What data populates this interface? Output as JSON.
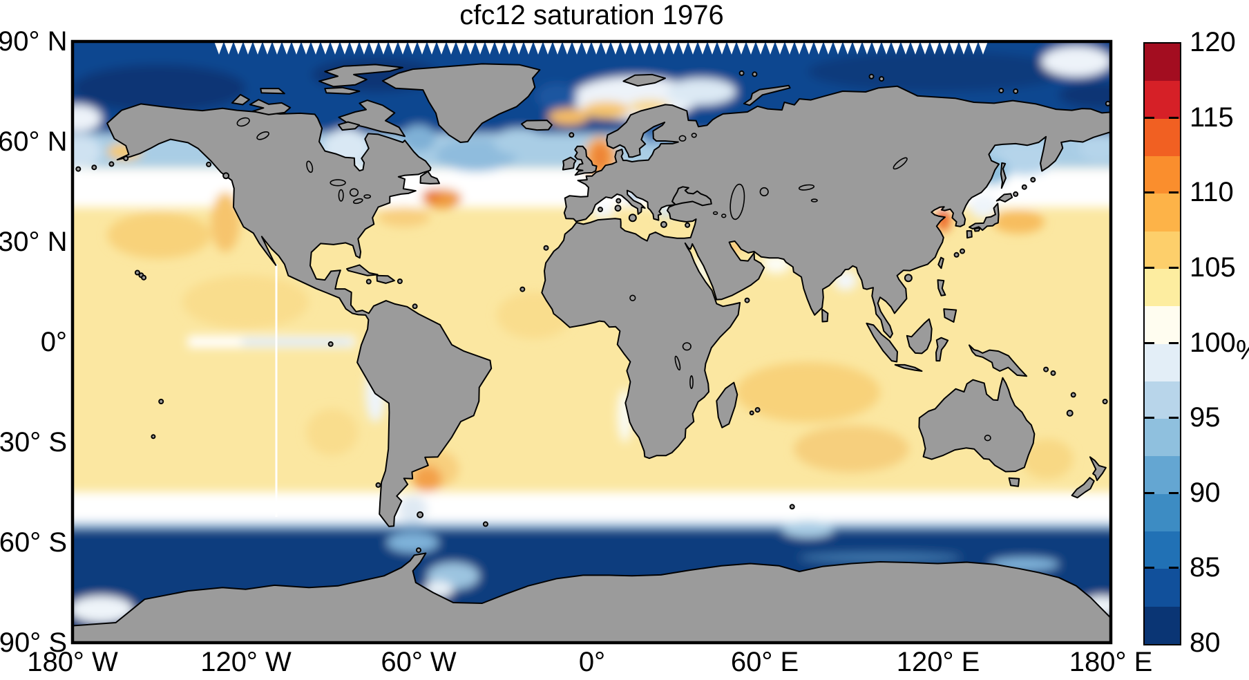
{
  "title": "cfc12 saturation 1976",
  "axes": {
    "x_tick_labels": [
      "180° W",
      "120° W",
      "60° W",
      "0°",
      "60° E",
      "120° E",
      "180° E"
    ],
    "x_tick_lons": [
      -180,
      -120,
      -60,
      0,
      60,
      120,
      180
    ],
    "y_tick_labels": [
      "90° N",
      "60° N",
      "30° N",
      "0°",
      "30° S",
      "60° S",
      "90° S"
    ],
    "y_tick_lats": [
      90,
      60,
      30,
      0,
      -30,
      -60,
      -90
    ]
  },
  "colorbar": {
    "min": 80,
    "max": 120,
    "tick_label_values": [
      120,
      115,
      110,
      105,
      100,
      95,
      90,
      85,
      80
    ],
    "inner_tick_values": [
      115,
      110,
      105,
      100,
      95,
      90,
      85
    ],
    "unit_label": "%",
    "segment_colors_bottom_to_top": [
      "#0a3574",
      "#11509b",
      "#2171b5",
      "#3d8cc3",
      "#64a6d2",
      "#8fc0de",
      "#b8d5ea",
      "#e3eef7",
      "#fffdf0",
      "#fdeda0",
      "#fdcf6b",
      "#fdb348",
      "#fa8e2d",
      "#f16022",
      "#d62027",
      "#a30d20"
    ]
  },
  "map": {
    "land_color": "#9b9b9b",
    "coast_color": "#000000",
    "frame_color": "#000000",
    "background_color": "#ffffff"
  },
  "chart_data": {
    "type": "heatmap",
    "title": "cfc12 saturation 1976",
    "variable": "CFC-12 surface saturation",
    "year": 1976,
    "units": "%",
    "projection": "equirectangular world map",
    "lon_range": [
      -180,
      180
    ],
    "lat_range": [
      -90,
      90
    ],
    "colorbar_range": [
      80,
      120
    ],
    "colorbar_tick_step": 5,
    "legend_position": "right colorbar",
    "grid": false,
    "regional_values_estimated_percent": {
      "arctic_ocean": 82,
      "barents_norwegian_sea_patch": 105,
      "north_atlantic_subpolar": 93,
      "hudson_bay": 97,
      "north_sea_baltic_approach": 110,
      "baltic_gulfs": 84,
      "newfoundland_gulf_stream_patch": 109,
      "subtropical_north_atlantic": 103,
      "mediterranean": 102,
      "black_sea": 96,
      "north_pacific_subpolar": 96,
      "bering_sea": 94,
      "sea_of_okhotsk": 93,
      "yellow_sea_hotspot": 113,
      "kuroshio_patch": 106,
      "subtropical_north_pacific": 104,
      "equatorial_pacific_tongue": 99,
      "tropical_indian_ocean": 103,
      "south_indian_subtropics": 105,
      "argentine_shelf_patch": 107,
      "southern_ocean_45S_55S_band": 100,
      "antarctic_zone_55S_75S": 81,
      "ross_weddell_coastal_pockets": 97
    }
  }
}
